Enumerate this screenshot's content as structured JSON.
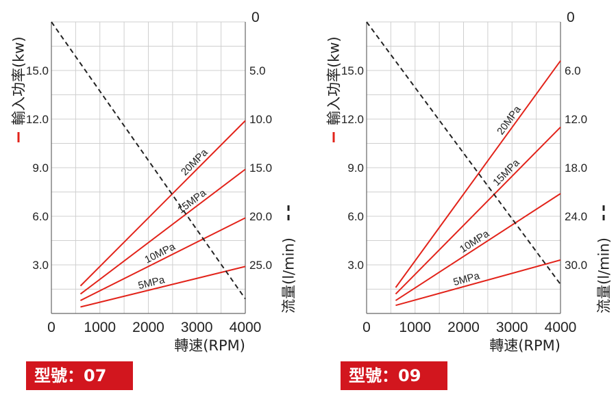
{
  "chart_data": [
    {
      "type": "line",
      "model": "型號：07",
      "xlabel": "轉速(RPM)",
      "ylabel_left": "輸入功率(kw)",
      "ylabel_right": "流量(l/min)",
      "xlim": [
        0,
        4000
      ],
      "ylim_left": [
        0,
        18.0
      ],
      "ylim_right": [
        0,
        30
      ],
      "x_ticks": [
        "0",
        "1000",
        "2000",
        "3000",
        "4000"
      ],
      "y_left_ticks": [
        "3.0",
        "6.0",
        "9.0",
        "12.0",
        "15.0"
      ],
      "y_left_tick_values": [
        3,
        6,
        9,
        12,
        15
      ],
      "y_right_ticks": [
        "0",
        "5.0",
        "10.0",
        "15.0",
        "20.0",
        "25.0"
      ],
      "y_right_tick_values": [
        0,
        5,
        10,
        15,
        20,
        25
      ],
      "grid": true,
      "power_color": "#e2231a",
      "flow_color": "#222222",
      "series": [
        {
          "name": "20MPa",
          "axis": "power",
          "x": [
            600,
            4000
          ],
          "y": [
            1.7,
            11.9
          ]
        },
        {
          "name": "15MPa",
          "axis": "power",
          "x": [
            600,
            4000
          ],
          "y": [
            1.2,
            8.9
          ]
        },
        {
          "name": "10MPa",
          "axis": "power",
          "x": [
            600,
            4000
          ],
          "y": [
            0.8,
            5.9
          ]
        },
        {
          "name": "5MPa",
          "axis": "power",
          "x": [
            600,
            4000
          ],
          "y": [
            0.4,
            2.9
          ]
        },
        {
          "axis": "flow",
          "style": "dashed",
          "x": [
            0,
            4000
          ],
          "y": [
            0,
            28.5
          ]
        }
      ]
    },
    {
      "type": "line",
      "model": "型號：09",
      "xlabel": "轉速(RPM)",
      "ylabel_left": "輸入功率(kw)",
      "ylabel_right": "流量(l/min)",
      "xlim": [
        0,
        4000
      ],
      "ylim_left": [
        0,
        18.0
      ],
      "ylim_right": [
        0,
        36
      ],
      "x_ticks": [
        "0",
        "1000",
        "2000",
        "3000",
        "4000"
      ],
      "y_left_ticks": [
        "3.0",
        "6.0",
        "9.0",
        "12.0",
        "15.0"
      ],
      "y_left_tick_values": [
        3,
        6,
        9,
        12,
        15
      ],
      "y_right_ticks": [
        "0",
        "6.0",
        "12.0",
        "18.0",
        "24.0",
        "30.0"
      ],
      "y_right_tick_values": [
        0,
        6,
        12,
        18,
        24,
        30
      ],
      "grid": true,
      "power_color": "#e2231a",
      "flow_color": "#222222",
      "series": [
        {
          "name": "20MPa",
          "axis": "power",
          "x": [
            600,
            4000
          ],
          "y": [
            1.6,
            15.6
          ]
        },
        {
          "name": "15MPa",
          "axis": "power",
          "x": [
            600,
            4000
          ],
          "y": [
            1.2,
            11.5
          ]
        },
        {
          "name": "10MPa",
          "axis": "power",
          "x": [
            600,
            4000
          ],
          "y": [
            0.8,
            7.4
          ]
        },
        {
          "name": "5MPa",
          "axis": "power",
          "x": [
            600,
            4000
          ],
          "y": [
            0.5,
            3.3
          ]
        },
        {
          "axis": "flow",
          "style": "dashed",
          "x": [
            0,
            4000
          ],
          "y": [
            0,
            32.4
          ]
        }
      ]
    }
  ]
}
